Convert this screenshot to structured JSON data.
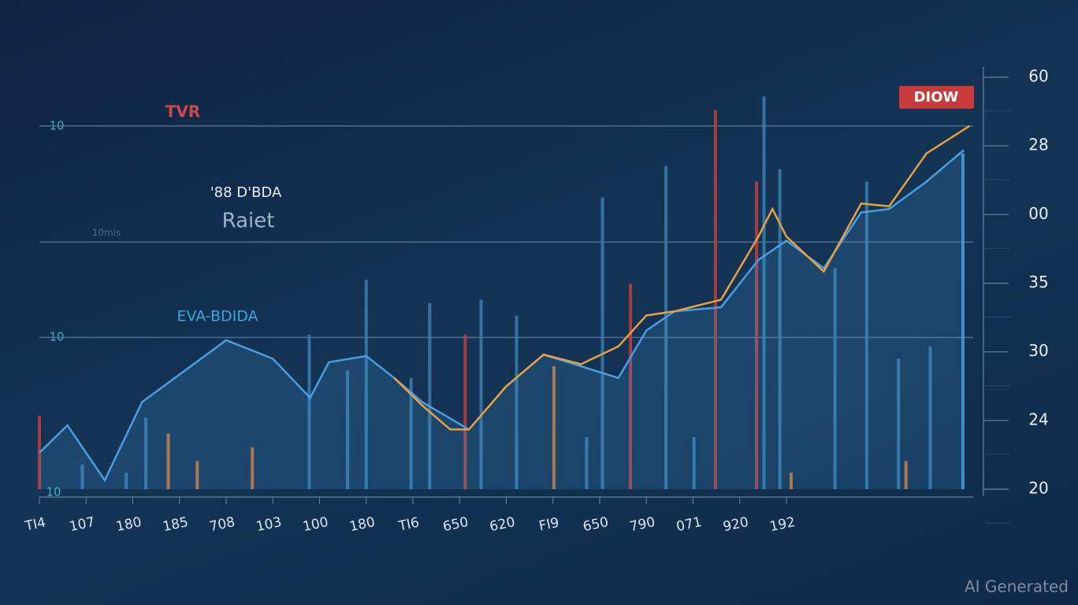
{
  "chart_data": {
    "type": "line",
    "texts": [
      "TVR",
      "'88 D'BDA",
      "Raiet",
      "10mis",
      "EVA-BDIDA"
    ],
    "badge": "DIOW",
    "left_labels": [
      "10",
      "10",
      "10"
    ],
    "watermark": "AI Generated",
    "xlim": [
      0,
      100
    ],
    "ylim": [
      0,
      6
    ],
    "xticks": [
      {
        "value": 0,
        "label": "TI4"
      },
      {
        "value": 5,
        "label": "107"
      },
      {
        "value": 10,
        "label": "180"
      },
      {
        "value": 15,
        "label": "185"
      },
      {
        "value": 20,
        "label": "708"
      },
      {
        "value": 25,
        "label": "103"
      },
      {
        "value": 30,
        "label": "100"
      },
      {
        "value": 35,
        "label": "180"
      },
      {
        "value": 40,
        "label": "TI6"
      },
      {
        "value": 45,
        "label": "650"
      },
      {
        "value": 50,
        "label": "620"
      },
      {
        "value": 55,
        "label": "FI9"
      },
      {
        "value": 60,
        "label": "650"
      },
      {
        "value": 65,
        "label": "790"
      },
      {
        "value": 70,
        "label": "071"
      },
      {
        "value": 75,
        "label": "920"
      },
      {
        "value": 80,
        "label": "192"
      }
    ],
    "yticks": [
      {
        "value": 6,
        "label": "60"
      },
      {
        "value": 5,
        "label": "28"
      },
      {
        "value": 4,
        "label": "00"
      },
      {
        "value": 3,
        "label": "35"
      },
      {
        "value": 2,
        "label": "30"
      },
      {
        "value": 1,
        "label": "24"
      },
      {
        "value": 0,
        "label": "20"
      }
    ],
    "reference_lines": [
      5.29,
      3.6,
      2.21
    ],
    "bars": {
      "x": [
        0,
        4.6,
        9.3,
        11.4,
        13.8,
        16.9,
        22.8,
        28.9,
        33,
        35,
        39.8,
        41.8,
        45.6,
        47.3,
        51.1,
        55.1,
        58.6,
        60.3,
        63.3,
        67.1,
        70.1,
        72.4,
        76.8,
        77.6,
        79.3,
        80.5,
        85.2,
        88.6,
        92,
        92.8,
        95.4,
        98.9
      ],
      "values": [
        1.07,
        0.36,
        0.24,
        1.04,
        0.81,
        0.41,
        0.61,
        2.25,
        1.73,
        3.05,
        1.62,
        2.71,
        2.25,
        2.76,
        2.53,
        1.79,
        0.76,
        4.25,
        2.99,
        4.71,
        0.76,
        5.52,
        4.48,
        5.72,
        4.66,
        0.24,
        3.22,
        4.48,
        1.9,
        0.41,
        2.08,
        4.89
      ],
      "colors": [
        "#c04040",
        "#3a7fb0",
        "#3a7fb0",
        "#3a7fb0",
        "#e07a30",
        "#e07a30",
        "#e07a30",
        "#3a7fb0",
        "#3a7fb0",
        "#3a7fb0",
        "#3a7fb0",
        "#3a7fb0",
        "#c04040",
        "#3a7fb0",
        "#3a7fb0",
        "#e07a30",
        "#3a7fb0",
        "#3a7fb0",
        "#c04040",
        "#3a7fb0",
        "#3a7fb0",
        "#c04040",
        "#c04040",
        "#3a7fb0",
        "#3a7fb0",
        "#e07a30",
        "#3a7fb0",
        "#3a7fb0",
        "#3a7fb0",
        "#e07a30",
        "#3a7fb0",
        "#4a9ee0"
      ]
    },
    "series": [
      {
        "color": "#4a9ee0",
        "x": [
          0,
          3,
          7,
          11,
          15,
          20,
          25,
          29,
          31,
          35,
          38,
          41,
          46,
          50,
          54,
          58,
          62,
          65,
          68,
          73,
          77,
          80,
          84,
          88,
          91,
          95,
          99
        ],
        "values": [
          0.53,
          0.93,
          0.13,
          1.27,
          1.67,
          2.17,
          1.9,
          1.33,
          1.85,
          1.94,
          1.62,
          1.27,
          0.87,
          1.5,
          1.96,
          1.79,
          1.62,
          2.31,
          2.59,
          2.65,
          3.34,
          3.62,
          3.22,
          4.03,
          4.08,
          4.48,
          4.94
        ]
      },
      {
        "color": "#e8a040",
        "x": [
          38,
          41,
          44,
          46,
          50,
          54,
          58,
          62,
          65,
          68,
          73,
          77,
          78.5,
          80,
          84,
          88,
          91,
          95,
          99.6
        ],
        "values": [
          1.62,
          1.22,
          0.87,
          0.87,
          1.5,
          1.96,
          1.82,
          2.08,
          2.53,
          2.59,
          2.76,
          3.68,
          4.08,
          3.68,
          3.17,
          4.16,
          4.12,
          4.89,
          5.29
        ]
      }
    ]
  }
}
